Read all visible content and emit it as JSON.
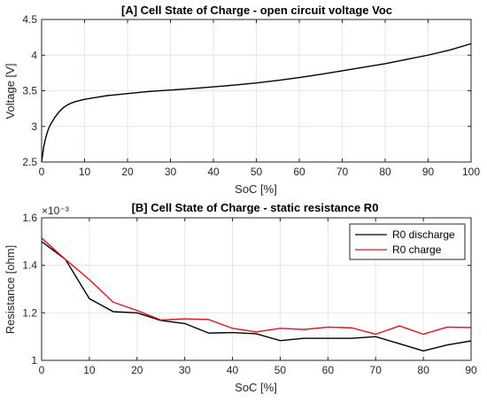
{
  "chart_data": [
    {
      "type": "line",
      "title": "[A] Cell State of Charge - open circuit voltage Voc",
      "xlabel": "SoC [%]",
      "ylabel": "Voltage [V]",
      "xlim": [
        0,
        100
      ],
      "ylim": [
        2.5,
        4.5
      ],
      "xticks": [
        0,
        10,
        20,
        30,
        40,
        50,
        60,
        70,
        80,
        90,
        100
      ],
      "yticks": [
        2.5,
        3,
        3.5,
        4,
        4.5
      ],
      "grid": true,
      "series": [
        {
          "color": "#000000",
          "x": [
            0,
            0.5,
            1,
            1.5,
            2,
            3,
            4,
            5,
            6,
            7,
            8,
            10,
            12,
            15,
            20,
            25,
            30,
            35,
            40,
            45,
            50,
            55,
            60,
            65,
            70,
            75,
            80,
            85,
            90,
            95,
            100
          ],
          "y": [
            2.5,
            2.72,
            2.85,
            2.95,
            3.02,
            3.12,
            3.2,
            3.26,
            3.3,
            3.33,
            3.35,
            3.38,
            3.4,
            3.43,
            3.46,
            3.49,
            3.51,
            3.53,
            3.555,
            3.58,
            3.61,
            3.645,
            3.685,
            3.73,
            3.78,
            3.83,
            3.88,
            3.94,
            4.0,
            4.07,
            4.16
          ]
        }
      ]
    },
    {
      "type": "line",
      "title": "[B] Cell State of Charge - static resistance R0",
      "xlabel": "SoC [%]",
      "ylabel": "Resistance [ohm]",
      "exponent_label": "×10⁻³",
      "xlim": [
        0,
        90
      ],
      "ylim": [
        1.0,
        1.6
      ],
      "xticks": [
        0,
        10,
        20,
        30,
        40,
        50,
        60,
        70,
        80,
        90
      ],
      "yticks": [
        1,
        1.2,
        1.4,
        1.6
      ],
      "grid": true,
      "legend": "top-right",
      "x": [
        0,
        5,
        10,
        15,
        20,
        25,
        30,
        35,
        40,
        45,
        50,
        55,
        60,
        65,
        70,
        75,
        80,
        85,
        90
      ],
      "series": [
        {
          "name": "R0 discharge",
          "color": "#000000",
          "values": [
            1.5,
            1.425,
            1.26,
            1.205,
            1.2,
            1.168,
            1.155,
            1.115,
            1.117,
            1.112,
            1.083,
            1.093,
            1.093,
            1.093,
            1.1,
            1.07,
            1.04,
            1.065,
            1.082
          ]
        },
        {
          "name": "R0 charge",
          "color": "#e8101a",
          "values": [
            1.515,
            1.425,
            1.34,
            1.245,
            1.21,
            1.17,
            1.175,
            1.172,
            1.135,
            1.12,
            1.135,
            1.13,
            1.14,
            1.137,
            1.11,
            1.145,
            1.11,
            1.14,
            1.138
          ]
        }
      ]
    }
  ]
}
